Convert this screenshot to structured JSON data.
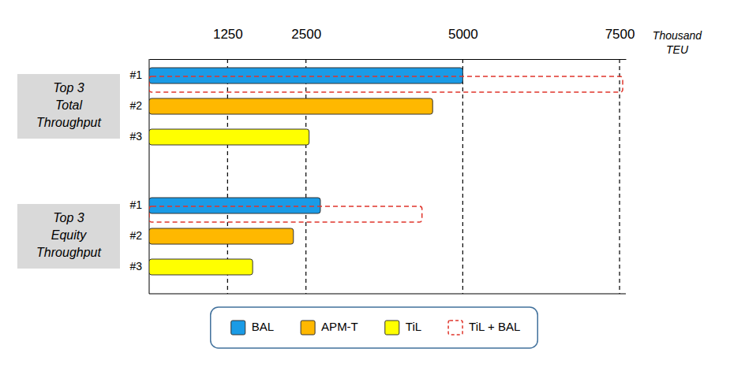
{
  "chart_data": {
    "type": "bar",
    "orientation": "horizontal",
    "xlim": [
      0,
      7600
    ],
    "xticks": [
      1250,
      2500,
      5000,
      7500
    ],
    "x_label": [
      "Thousand",
      "TEU"
    ],
    "grid": true,
    "legend": "bottom",
    "groups": [
      {
        "label": [
          "Top 3",
          "Total",
          "Throughput"
        ],
        "categories": [
          "#1",
          "#2",
          "#3"
        ]
      },
      {
        "label": [
          "Top 3",
          "Equity",
          "Throughput"
        ],
        "categories": [
          "#1",
          "#2",
          "#3"
        ]
      }
    ],
    "series": [
      {
        "name": "BAL",
        "color": "#1a9be6",
        "values": [
          5000,
          null,
          null,
          2730,
          null,
          null
        ]
      },
      {
        "name": "APM-T",
        "color": "#ffb800",
        "values": [
          null,
          4520,
          null,
          null,
          2300,
          null
        ]
      },
      {
        "name": "TiL",
        "color": "#ffff00",
        "values": [
          null,
          null,
          2550,
          null,
          null,
          1650
        ]
      },
      {
        "name": "TiL + BAL",
        "color": "#e0352b",
        "line_style": "dashed",
        "values": [
          7550,
          null,
          null,
          4350,
          null,
          null
        ]
      }
    ]
  }
}
